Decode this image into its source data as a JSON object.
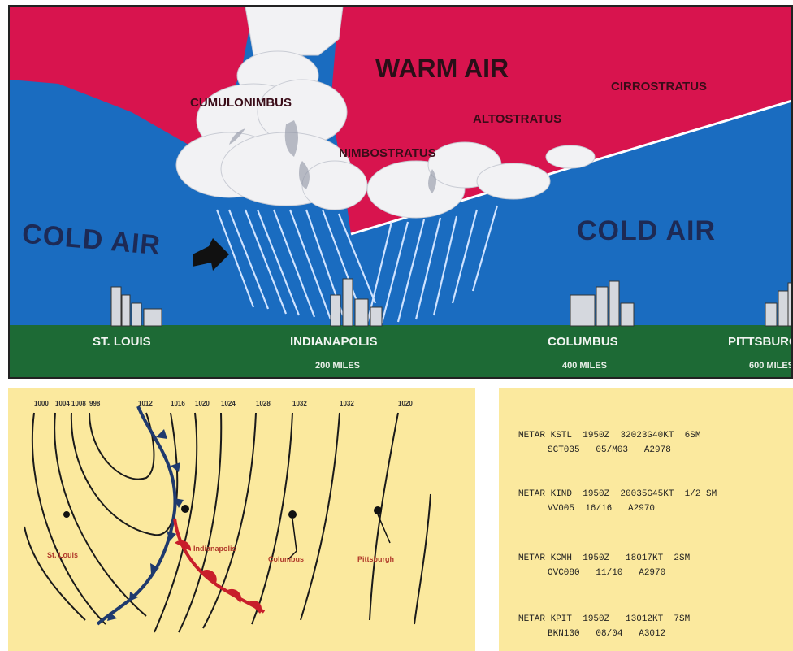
{
  "cross_section": {
    "warm_air": "WARM AIR",
    "cold_air_left": "COLD AIR",
    "cold_air_right": "COLD AIR",
    "clouds": {
      "cumulonimbus": "CUMULONIMBUS",
      "cirrostratus": "CIRROSTRATUS",
      "altostratus": "ALTOSTRATUS",
      "nimbostratus": "NIMBOSTRATUS"
    },
    "cities": [
      {
        "name": "ST. LOUIS",
        "miles": ""
      },
      {
        "name": "INDIANAPOLIS",
        "miles": "200 MILES"
      },
      {
        "name": "COLUMBUS",
        "miles": "400 MILES"
      },
      {
        "name": "PITTSBURGH",
        "miles": "600 MILES"
      }
    ],
    "colors": {
      "warm": "#d8144e",
      "cold": "#1a6cc0",
      "ground": "#1d6a35"
    }
  },
  "map": {
    "top_labels": [
      "1000",
      "1004",
      "1008",
      "998",
      "1012",
      "1016",
      "1020",
      "1024",
      "1028",
      "1032",
      "1032",
      "1020"
    ],
    "station_labels": [
      "St. Louis",
      "Indianapolis",
      "Columbus",
      "Pittsburgh"
    ],
    "colors": {
      "background": "#fbe99e",
      "cold_front": "#1f3a6e",
      "warm_front": "#c81e2b"
    }
  },
  "metars": [
    {
      "line1": "METAR KSTL  1950Z  32023G40KT  6SM",
      "line2": "SCT035   05/M03   A2978"
    },
    {
      "line1": "METAR KIND  1950Z  20035G45KT  1/2 SM",
      "line2": "VV005  16/16   A2970"
    },
    {
      "line1": "METAR KCMH  1950Z   18017KT  2SM",
      "line2": "OVC080   11/10   A2970"
    },
    {
      "line1": "METAR KPIT  1950Z   13012KT  7SM",
      "line2": "BKN130   08/04   A3012"
    }
  ]
}
